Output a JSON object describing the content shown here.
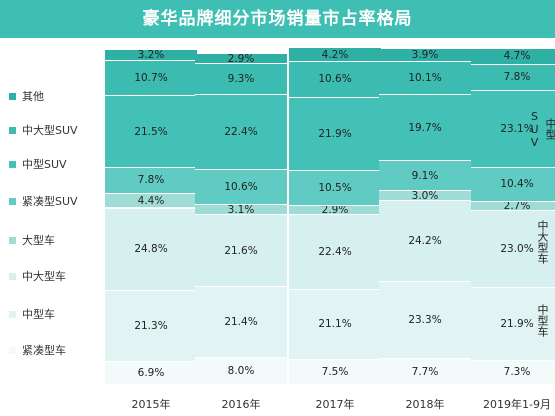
{
  "title": "豪华品牌细分市场销量市占率格局",
  "colors": {
    "title_bg": "#3fbfb3",
    "segments": [
      "#f2fafa",
      "#e1f4f3",
      "#d5f0ee",
      "#9fdcd6",
      "#5fcbc2",
      "#43c1b7",
      "#3cbcb1",
      "#2fb0a5"
    ]
  },
  "chart_data": {
    "type": "stacked-bar-100",
    "title": "豪华品牌细分市场销量市占率格局",
    "categories": [
      "2015年",
      "2016年",
      "2017年",
      "2018年",
      "2019年1-9月"
    ],
    "series": [
      {
        "name": "紧凑型车",
        "values": [
          6.9,
          8.0,
          7.5,
          7.7,
          7.3
        ]
      },
      {
        "name": "中型车",
        "values": [
          21.3,
          21.4,
          21.1,
          23.3,
          21.9
        ]
      },
      {
        "name": "中大型车",
        "values": [
          24.8,
          21.6,
          22.4,
          24.2,
          23.0
        ]
      },
      {
        "name": "大型车",
        "values": [
          4.4,
          3.1,
          2.9,
          3.0,
          2.7
        ]
      },
      {
        "name": "紧凑型SUV",
        "values": [
          7.8,
          10.6,
          10.5,
          9.1,
          10.4
        ]
      },
      {
        "name": "中型SUV",
        "values": [
          21.5,
          22.4,
          21.9,
          19.7,
          23.1
        ]
      },
      {
        "name": "中大型SUV",
        "values": [
          10.7,
          9.3,
          10.6,
          10.1,
          7.8
        ]
      },
      {
        "name": "其他",
        "values": [
          3.2,
          2.9,
          4.2,
          3.9,
          4.7
        ]
      }
    ],
    "legend_order": [
      "其他",
      "中大型SUV",
      "中型SUV",
      "紧凑型SUV",
      "大型车",
      "中大型车",
      "中型车",
      "紧凑型车"
    ],
    "legend_position": "left",
    "right_labels": [
      "中型SUV",
      "中大型车",
      "中型车"
    ],
    "ylim": [
      0,
      100
    ]
  }
}
